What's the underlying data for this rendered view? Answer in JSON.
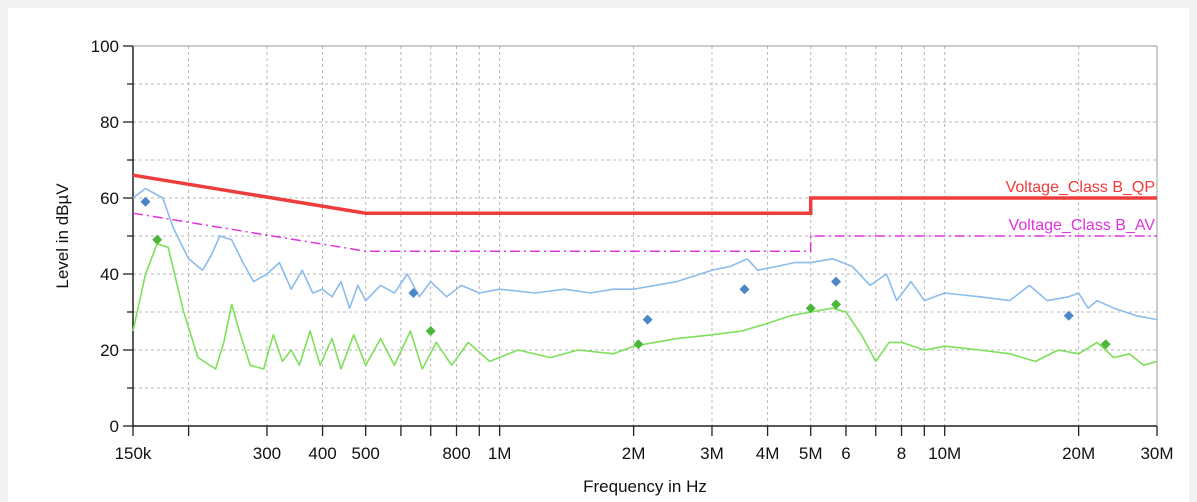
{
  "chart_data": {
    "type": "line",
    "title": "",
    "xlabel": "Frequency in Hz",
    "ylabel": "Level in dBµV",
    "xscale": "log",
    "xlim_hz": [
      150000,
      30000000
    ],
    "ylim": [
      0,
      100
    ],
    "grid": true,
    "x_tick_labels": [
      {
        "hz": 150000,
        "label": "150k"
      },
      {
        "hz": 300000,
        "label": "300"
      },
      {
        "hz": 400000,
        "label": "400"
      },
      {
        "hz": 500000,
        "label": "500"
      },
      {
        "hz": 800000,
        "label": "800"
      },
      {
        "hz": 1000000,
        "label": "1M"
      },
      {
        "hz": 2000000,
        "label": "2M"
      },
      {
        "hz": 3000000,
        "label": "3M"
      },
      {
        "hz": 4000000,
        "label": "4M"
      },
      {
        "hz": 5000000,
        "label": "5M"
      },
      {
        "hz": 6000000,
        "label": "6"
      },
      {
        "hz": 8000000,
        "label": "8"
      },
      {
        "hz": 10000000,
        "label": "10M"
      },
      {
        "hz": 20000000,
        "label": "20M"
      },
      {
        "hz": 30000000,
        "label": "30M"
      }
    ],
    "y_tick_labels": [
      0,
      20,
      40,
      60,
      80,
      100
    ],
    "limits": [
      {
        "name": "Voltage_Class B_QP",
        "color": "#ee3b3b",
        "points": [
          [
            150000,
            66
          ],
          [
            500000,
            56
          ],
          [
            5000000,
            56
          ],
          [
            5000000,
            60
          ],
          [
            30000000,
            60
          ]
        ]
      },
      {
        "name": "Voltage_Class B_AV",
        "color": "#e033e0",
        "points": [
          [
            150000,
            56
          ],
          [
            500000,
            46
          ],
          [
            5000000,
            46
          ],
          [
            5000000,
            50
          ],
          [
            30000000,
            50
          ]
        ]
      }
    ],
    "series": [
      {
        "color": "#8cbcec",
        "kind": "peak",
        "points": [
          [
            150000,
            60
          ],
          [
            160000,
            62.5
          ],
          [
            175000,
            60
          ],
          [
            185000,
            52
          ],
          [
            200000,
            44
          ],
          [
            215000,
            41
          ],
          [
            225000,
            45
          ],
          [
            235000,
            50
          ],
          [
            250000,
            49
          ],
          [
            265000,
            43
          ],
          [
            280000,
            38
          ],
          [
            300000,
            40
          ],
          [
            320000,
            43
          ],
          [
            340000,
            36
          ],
          [
            360000,
            41
          ],
          [
            380000,
            35
          ],
          [
            400000,
            36
          ],
          [
            420000,
            34
          ],
          [
            440000,
            38
          ],
          [
            460000,
            31
          ],
          [
            480000,
            37
          ],
          [
            500000,
            33
          ],
          [
            540000,
            37
          ],
          [
            580000,
            35
          ],
          [
            620000,
            40
          ],
          [
            660000,
            34
          ],
          [
            700000,
            38
          ],
          [
            760000,
            34
          ],
          [
            820000,
            37
          ],
          [
            900000,
            35
          ],
          [
            1000000,
            36
          ],
          [
            1200000,
            35
          ],
          [
            1400000,
            36
          ],
          [
            1600000,
            35
          ],
          [
            1800000,
            36
          ],
          [
            2000000,
            36
          ],
          [
            2500000,
            38
          ],
          [
            3000000,
            41
          ],
          [
            3300000,
            42
          ],
          [
            3600000,
            44
          ],
          [
            3800000,
            41
          ],
          [
            4200000,
            42
          ],
          [
            4600000,
            43
          ],
          [
            5000000,
            43
          ],
          [
            5600000,
            44
          ],
          [
            6200000,
            42
          ],
          [
            6800000,
            37
          ],
          [
            7400000,
            40
          ],
          [
            7800000,
            33
          ],
          [
            8400000,
            38
          ],
          [
            9000000,
            33
          ],
          [
            10000000,
            35
          ],
          [
            12000000,
            34
          ],
          [
            14000000,
            33
          ],
          [
            15500000,
            37
          ],
          [
            17000000,
            33
          ],
          [
            19000000,
            34
          ],
          [
            20000000,
            35
          ],
          [
            21000000,
            31
          ],
          [
            22000000,
            33
          ],
          [
            24000000,
            31
          ],
          [
            27000000,
            29
          ],
          [
            30000000,
            28
          ]
        ]
      },
      {
        "color": "#7de05a",
        "kind": "average",
        "points": [
          [
            150000,
            25
          ],
          [
            160000,
            40
          ],
          [
            170000,
            48
          ],
          [
            180000,
            47
          ],
          [
            195000,
            30
          ],
          [
            210000,
            18
          ],
          [
            230000,
            15
          ],
          [
            240000,
            22
          ],
          [
            250000,
            32
          ],
          [
            260000,
            25
          ],
          [
            275000,
            16
          ],
          [
            295000,
            15
          ],
          [
            310000,
            24
          ],
          [
            325000,
            17
          ],
          [
            340000,
            20
          ],
          [
            355000,
            16
          ],
          [
            375000,
            25
          ],
          [
            395000,
            16
          ],
          [
            420000,
            23
          ],
          [
            440000,
            15
          ],
          [
            470000,
            24
          ],
          [
            500000,
            16
          ],
          [
            540000,
            23
          ],
          [
            580000,
            16
          ],
          [
            630000,
            25
          ],
          [
            670000,
            15
          ],
          [
            720000,
            22
          ],
          [
            780000,
            16
          ],
          [
            850000,
            22
          ],
          [
            950000,
            17
          ],
          [
            1100000,
            20
          ],
          [
            1300000,
            18
          ],
          [
            1500000,
            20
          ],
          [
            1800000,
            19
          ],
          [
            2000000,
            21
          ],
          [
            2500000,
            23
          ],
          [
            3000000,
            24
          ],
          [
            3500000,
            25
          ],
          [
            4000000,
            27
          ],
          [
            4500000,
            29
          ],
          [
            5000000,
            30
          ],
          [
            5600000,
            31
          ],
          [
            6000000,
            30
          ],
          [
            6500000,
            24
          ],
          [
            7000000,
            17
          ],
          [
            7500000,
            22
          ],
          [
            8000000,
            22
          ],
          [
            9000000,
            20
          ],
          [
            10000000,
            21
          ],
          [
            12000000,
            20
          ],
          [
            14000000,
            19
          ],
          [
            16000000,
            17
          ],
          [
            18000000,
            20
          ],
          [
            20000000,
            19
          ],
          [
            22000000,
            22
          ],
          [
            24000000,
            18
          ],
          [
            26000000,
            19
          ],
          [
            28000000,
            16
          ],
          [
            30000000,
            17
          ]
        ]
      }
    ],
    "markers": [
      {
        "color": "#4a86c8",
        "points": [
          [
            160000,
            59
          ],
          [
            640000,
            35
          ],
          [
            2150000,
            28
          ],
          [
            3550000,
            36
          ],
          [
            5700000,
            38
          ],
          [
            19000000,
            29
          ]
        ]
      },
      {
        "color": "#4bb83a",
        "points": [
          [
            170000,
            49
          ],
          [
            700000,
            25
          ],
          [
            2050000,
            21.5
          ],
          [
            5000000,
            31
          ],
          [
            5700000,
            32
          ],
          [
            23000000,
            21.5
          ]
        ]
      }
    ]
  }
}
